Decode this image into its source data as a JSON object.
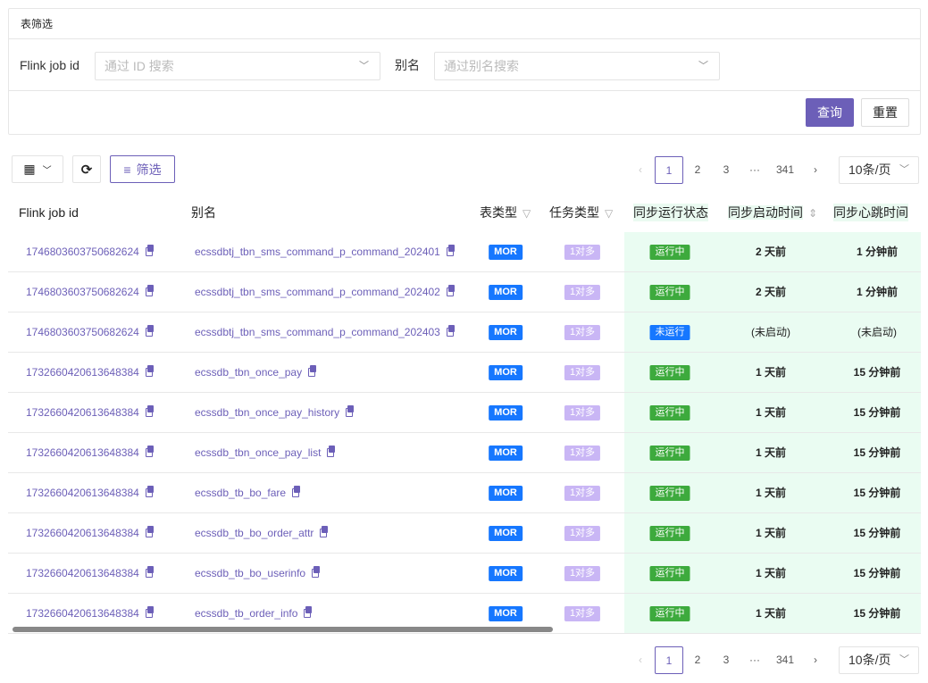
{
  "filter_card": {
    "title": "表筛选",
    "job_id_label": "Flink job id",
    "job_id_placeholder": "通过 ID 搜索",
    "alias_label": "别名",
    "alias_placeholder": "通过别名搜索",
    "query": "查询",
    "reset": "重置"
  },
  "toolbar": {
    "filter": "筛选"
  },
  "pagination": {
    "pages": [
      "1",
      "2",
      "3",
      "···",
      "341"
    ],
    "current": "1",
    "page_size": "10条/页"
  },
  "columns": {
    "job_id": "Flink job id",
    "alias": "别名",
    "table_type": "表类型",
    "task_type": "任务类型",
    "sync_status": "同步运行状态",
    "start_time": "同步启动时间",
    "heartbeat": "同步心跳时间"
  },
  "colors": {
    "accent": "#6c5fb8",
    "mor": "#1677ff",
    "running": "#3daa3d",
    "not_running": "#1677ff",
    "task": "#c9b6f5",
    "status_bg": "#eafcf2"
  },
  "rows": [
    {
      "job_id": "1746803603750682624",
      "alias": "ecssdbtj_tbn_sms_command_p_command_202401",
      "table_type": "MOR",
      "task_type": "1对多",
      "status": "运行中",
      "start": "2 天前",
      "heartbeat": "1 分钟前"
    },
    {
      "job_id": "1746803603750682624",
      "alias": "ecssdbtj_tbn_sms_command_p_command_202402",
      "table_type": "MOR",
      "task_type": "1对多",
      "status": "运行中",
      "start": "2 天前",
      "heartbeat": "1 分钟前"
    },
    {
      "job_id": "1746803603750682624",
      "alias": "ecssdbtj_tbn_sms_command_p_command_202403",
      "table_type": "MOR",
      "task_type": "1对多",
      "status": "未运行",
      "start": "(未启动)",
      "heartbeat": "(未启动)"
    },
    {
      "job_id": "1732660420613648384",
      "alias": "ecssdb_tbn_once_pay",
      "table_type": "MOR",
      "task_type": "1对多",
      "status": "运行中",
      "start": "1 天前",
      "heartbeat": "15 分钟前"
    },
    {
      "job_id": "1732660420613648384",
      "alias": "ecssdb_tbn_once_pay_history",
      "table_type": "MOR",
      "task_type": "1对多",
      "status": "运行中",
      "start": "1 天前",
      "heartbeat": "15 分钟前"
    },
    {
      "job_id": "1732660420613648384",
      "alias": "ecssdb_tbn_once_pay_list",
      "table_type": "MOR",
      "task_type": "1对多",
      "status": "运行中",
      "start": "1 天前",
      "heartbeat": "15 分钟前"
    },
    {
      "job_id": "1732660420613648384",
      "alias": "ecssdb_tb_bo_fare",
      "table_type": "MOR",
      "task_type": "1对多",
      "status": "运行中",
      "start": "1 天前",
      "heartbeat": "15 分钟前"
    },
    {
      "job_id": "1732660420613648384",
      "alias": "ecssdb_tb_bo_order_attr",
      "table_type": "MOR",
      "task_type": "1对多",
      "status": "运行中",
      "start": "1 天前",
      "heartbeat": "15 分钟前"
    },
    {
      "job_id": "1732660420613648384",
      "alias": "ecssdb_tb_bo_userinfo",
      "table_type": "MOR",
      "task_type": "1对多",
      "status": "运行中",
      "start": "1 天前",
      "heartbeat": "15 分钟前"
    },
    {
      "job_id": "1732660420613648384",
      "alias": "ecssdb_tb_order_info",
      "table_type": "MOR",
      "task_type": "1对多",
      "status": "运行中",
      "start": "1 天前",
      "heartbeat": "15 分钟前"
    }
  ]
}
